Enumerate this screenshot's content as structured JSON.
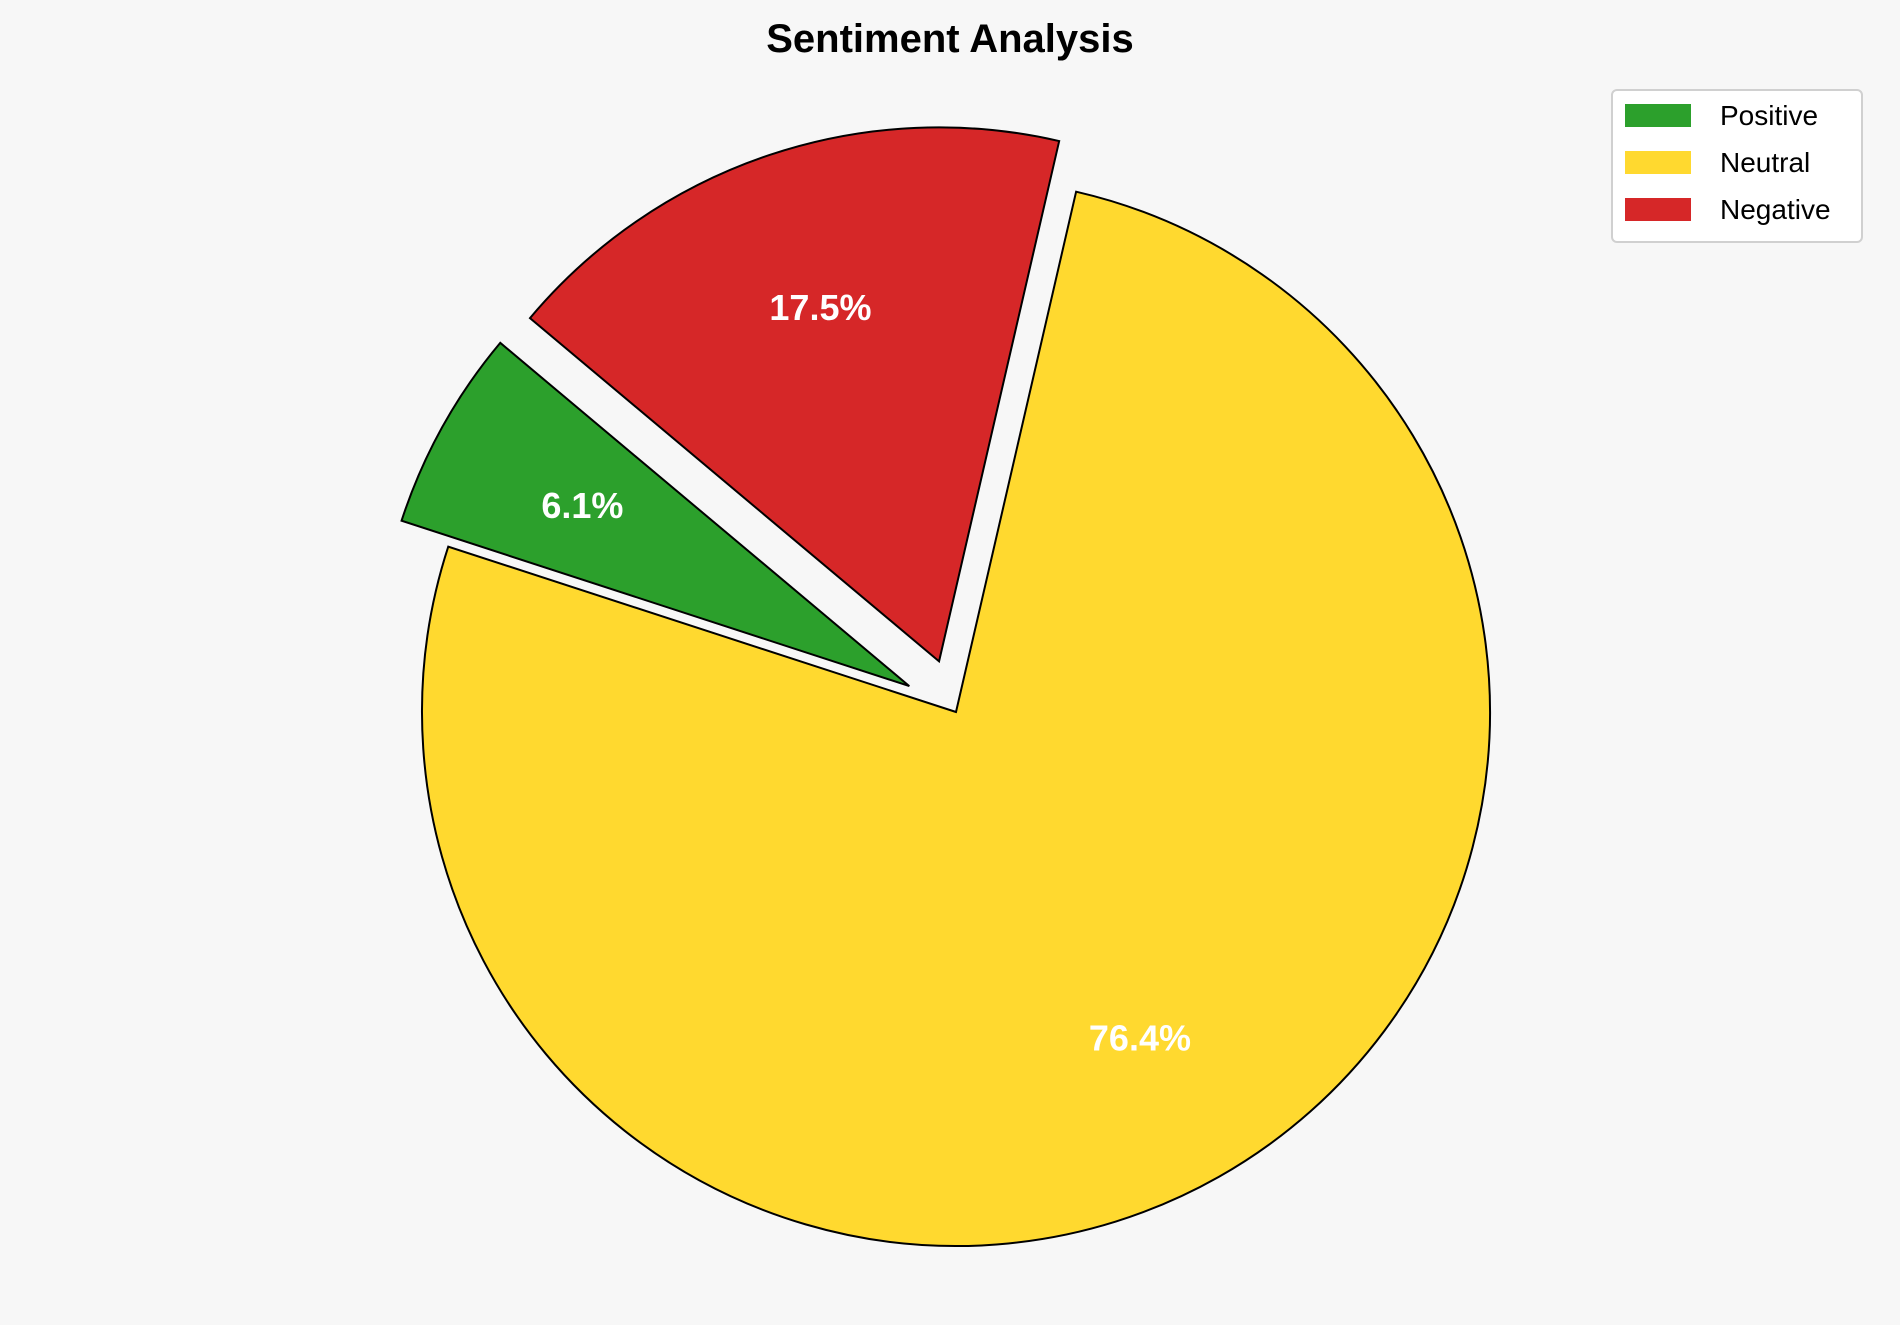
{
  "chart_data": {
    "type": "pie",
    "title": "Sentiment Analysis",
    "categories": [
      "Positive",
      "Neutral",
      "Negative"
    ],
    "values": [
      6.1,
      76.4,
      17.5
    ],
    "labels": [
      "6.1%",
      "76.4%",
      "17.5%"
    ],
    "colors": [
      "#2ca02c",
      "#ffd92f",
      "#d62728"
    ],
    "explode": [
      0.1,
      0,
      0.1
    ],
    "start_angle": 140,
    "direction": "counterclockwise",
    "legend_position": "top-right",
    "background": "#f7f7f7"
  }
}
